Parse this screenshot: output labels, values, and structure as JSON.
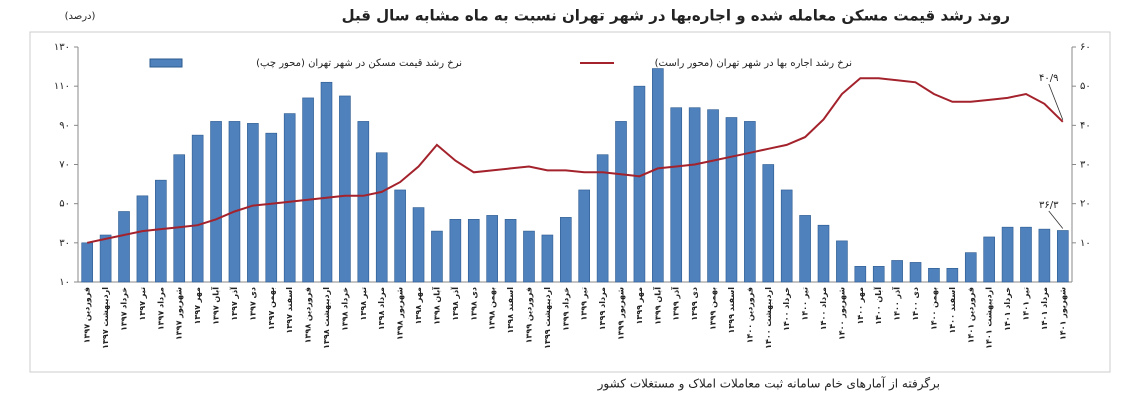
{
  "chart_data": {
    "type": "combo",
    "title": "روند رشد قیمت مسکن معامله شده و اجاره‌بها در شهر تهران نسبت به ماه مشابه سال قبل",
    "unit_label": "(درصد)",
    "source": "برگرفته از آمارهای خام سامانه ثبت معاملات املاک و مستغلات کشور",
    "categories": [
      "فروردین ۱۳۹۷",
      "اردیبهشت ۱۳۹۷",
      "خرداد ۱۳۹۷",
      "تیر ۱۳۹۷",
      "مرداد ۱۳۹۷",
      "شهریور ۱۳۹۷",
      "مهر ۱۳۹۷",
      "آبان ۱۳۹۷",
      "آذر ۱۳۹۷",
      "دی ۱۳۹۷",
      "بهمن ۱۳۹۷",
      "اسفند ۱۳۹۷",
      "فروردین ۱۳۹۸",
      "اردیبهشت ۱۳۹۸",
      "خرداد ۱۳۹۸",
      "تیر ۱۳۹۸",
      "مرداد ۱۳۹۸",
      "شهریور ۱۳۹۸",
      "مهر ۱۳۹۸",
      "آبان ۱۳۹۸",
      "آذر ۱۳۹۸",
      "دی ۱۳۹۸",
      "بهمن ۱۳۹۸",
      "اسفند ۱۳۹۸",
      "فروردین ۱۳۹۹",
      "اردیبهشت ۱۳۹۹",
      "خرداد ۱۳۹۹",
      "تیر ۱۳۹۹",
      "مرداد ۱۳۹۹",
      "شهریور ۱۳۹۹",
      "مهر ۱۳۹۹",
      "آبان ۱۳۹۹",
      "آذر ۱۳۹۹",
      "دی ۱۳۹۹",
      "بهمن ۱۳۹۹",
      "اسفند ۱۳۹۹",
      "فروردین ۱۴۰۰",
      "اردیبهشت ۱۴۰۰",
      "خرداد ۱۴۰۰",
      "تیر ۱۴۰۰",
      "مرداد ۱۴۰۰",
      "شهریور ۱۴۰۰",
      "مهر ۱۴۰۰",
      "آبان ۱۴۰۰",
      "آذر ۱۴۰۰",
      "دی ۱۴۰۰",
      "بهمن ۱۴۰۰",
      "اسفند ۱۴۰۰",
      "فروردین ۱۴۰۱",
      "اردیبهشت ۱۴۰۱",
      "خرداد ۱۴۰۱",
      "تیر ۱۴۰۱",
      "مرداد ۱۴۰۱",
      "شهریور ۱۴۰۱"
    ],
    "series": [
      {
        "name": "نرخ رشد قیمت مسکن در شهر تهران (محور چپ)",
        "type": "bar",
        "axis": "y",
        "color": "#4f81bd",
        "values": [
          30,
          34,
          46,
          54,
          62,
          75,
          85,
          92,
          92,
          91,
          86,
          96,
          104,
          112,
          105,
          92,
          76,
          57,
          48,
          36,
          42,
          42,
          44,
          42,
          36,
          34,
          43,
          57,
          75,
          92,
          110,
          119,
          99,
          99,
          98,
          94,
          92,
          70,
          57,
          44,
          39,
          31,
          18,
          18,
          21,
          20,
          17,
          17,
          25,
          33,
          38,
          38,
          37,
          36.3
        ],
        "value_labels": [
          null,
          null,
          null,
          null,
          null,
          null,
          null,
          null,
          null,
          null,
          null,
          null,
          null,
          null,
          null,
          null,
          null,
          null,
          null,
          null,
          null,
          null,
          null,
          null,
          null,
          null,
          null,
          null,
          null,
          null,
          null,
          null,
          null,
          null,
          null,
          null,
          null,
          null,
          null,
          null,
          null,
          null,
          null,
          null,
          null,
          null,
          null,
          null,
          null,
          null,
          null,
          null,
          null,
          "۳۶/۳"
        ]
      },
      {
        "name": "نرخ رشد اجاره بها در شهر تهران (محور راست)",
        "type": "line",
        "axis": "y2",
        "color": "#a3222c",
        "values": [
          10,
          11,
          12,
          13,
          13.5,
          14,
          14.5,
          16,
          18,
          19.5,
          20,
          20.5,
          21,
          21.5,
          22,
          22,
          23,
          25.5,
          29.5,
          35,
          31,
          28,
          28.5,
          29,
          29.5,
          28.5,
          28.5,
          28,
          28,
          27.5,
          27,
          29,
          29.5,
          30,
          31,
          32,
          33,
          34,
          35,
          37,
          41.5,
          48,
          52,
          52,
          51.5,
          51,
          48,
          46,
          46,
          46.5,
          47,
          48,
          45.5,
          40.9
        ],
        "value_labels": [
          null,
          null,
          null,
          null,
          null,
          null,
          null,
          null,
          null,
          null,
          null,
          null,
          null,
          null,
          null,
          null,
          null,
          null,
          null,
          null,
          null,
          null,
          null,
          null,
          null,
          null,
          null,
          null,
          null,
          null,
          null,
          null,
          null,
          null,
          null,
          null,
          null,
          null,
          null,
          null,
          null,
          null,
          null,
          null,
          null,
          null,
          null,
          null,
          null,
          null,
          null,
          null,
          null,
          "۴۰/۹"
        ]
      }
    ],
    "ylim": [
      10,
      130
    ],
    "yticks": [
      {
        "value": 10,
        "label": "۱۰"
      },
      {
        "value": 30,
        "label": "۳۰"
      },
      {
        "value": 50,
        "label": "۵۰"
      },
      {
        "value": 70,
        "label": "۷۰"
      },
      {
        "value": 90,
        "label": "۹۰"
      },
      {
        "value": 110,
        "label": "۱۱۰"
      },
      {
        "value": 130,
        "label": "۱۳۰"
      }
    ],
    "y2lim": [
      0,
      60
    ],
    "y2ticks": [
      {
        "value": 10,
        "label": "۱۰"
      },
      {
        "value": 20,
        "label": "۲۰"
      },
      {
        "value": 30,
        "label": "۳۰"
      },
      {
        "value": 40,
        "label": "۴۰"
      },
      {
        "value": 50,
        "label": "۵۰"
      },
      {
        "value": 60,
        "label": "۶۰"
      }
    ],
    "legend": "top"
  }
}
